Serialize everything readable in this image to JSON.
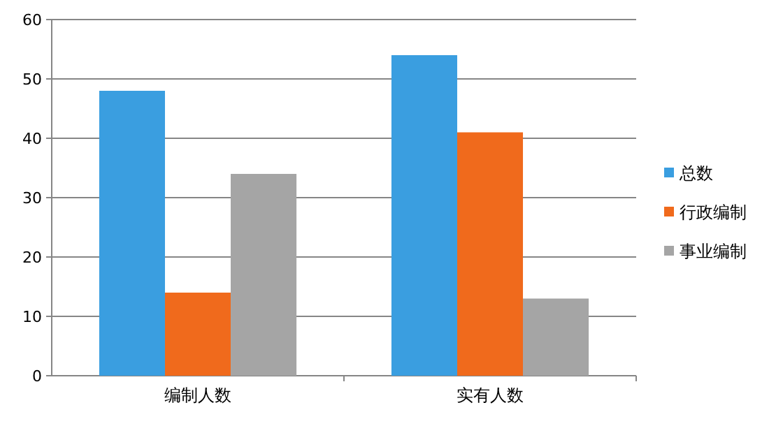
{
  "chart_data": {
    "type": "bar",
    "categories": [
      "编制人数",
      "实有人数"
    ],
    "series": [
      {
        "name": "总数",
        "color": "#3a9ee0",
        "values": [
          48,
          54
        ]
      },
      {
        "name": "行政编制",
        "color": "#f06a1c",
        "values": [
          14,
          41
        ]
      },
      {
        "name": "事业编制",
        "color": "#a5a5a5",
        "values": [
          34,
          13
        ]
      }
    ],
    "ylim": [
      0,
      60
    ],
    "yticks": [
      0,
      10,
      20,
      30,
      40,
      50,
      60
    ],
    "grid": "y",
    "legend": "right"
  }
}
